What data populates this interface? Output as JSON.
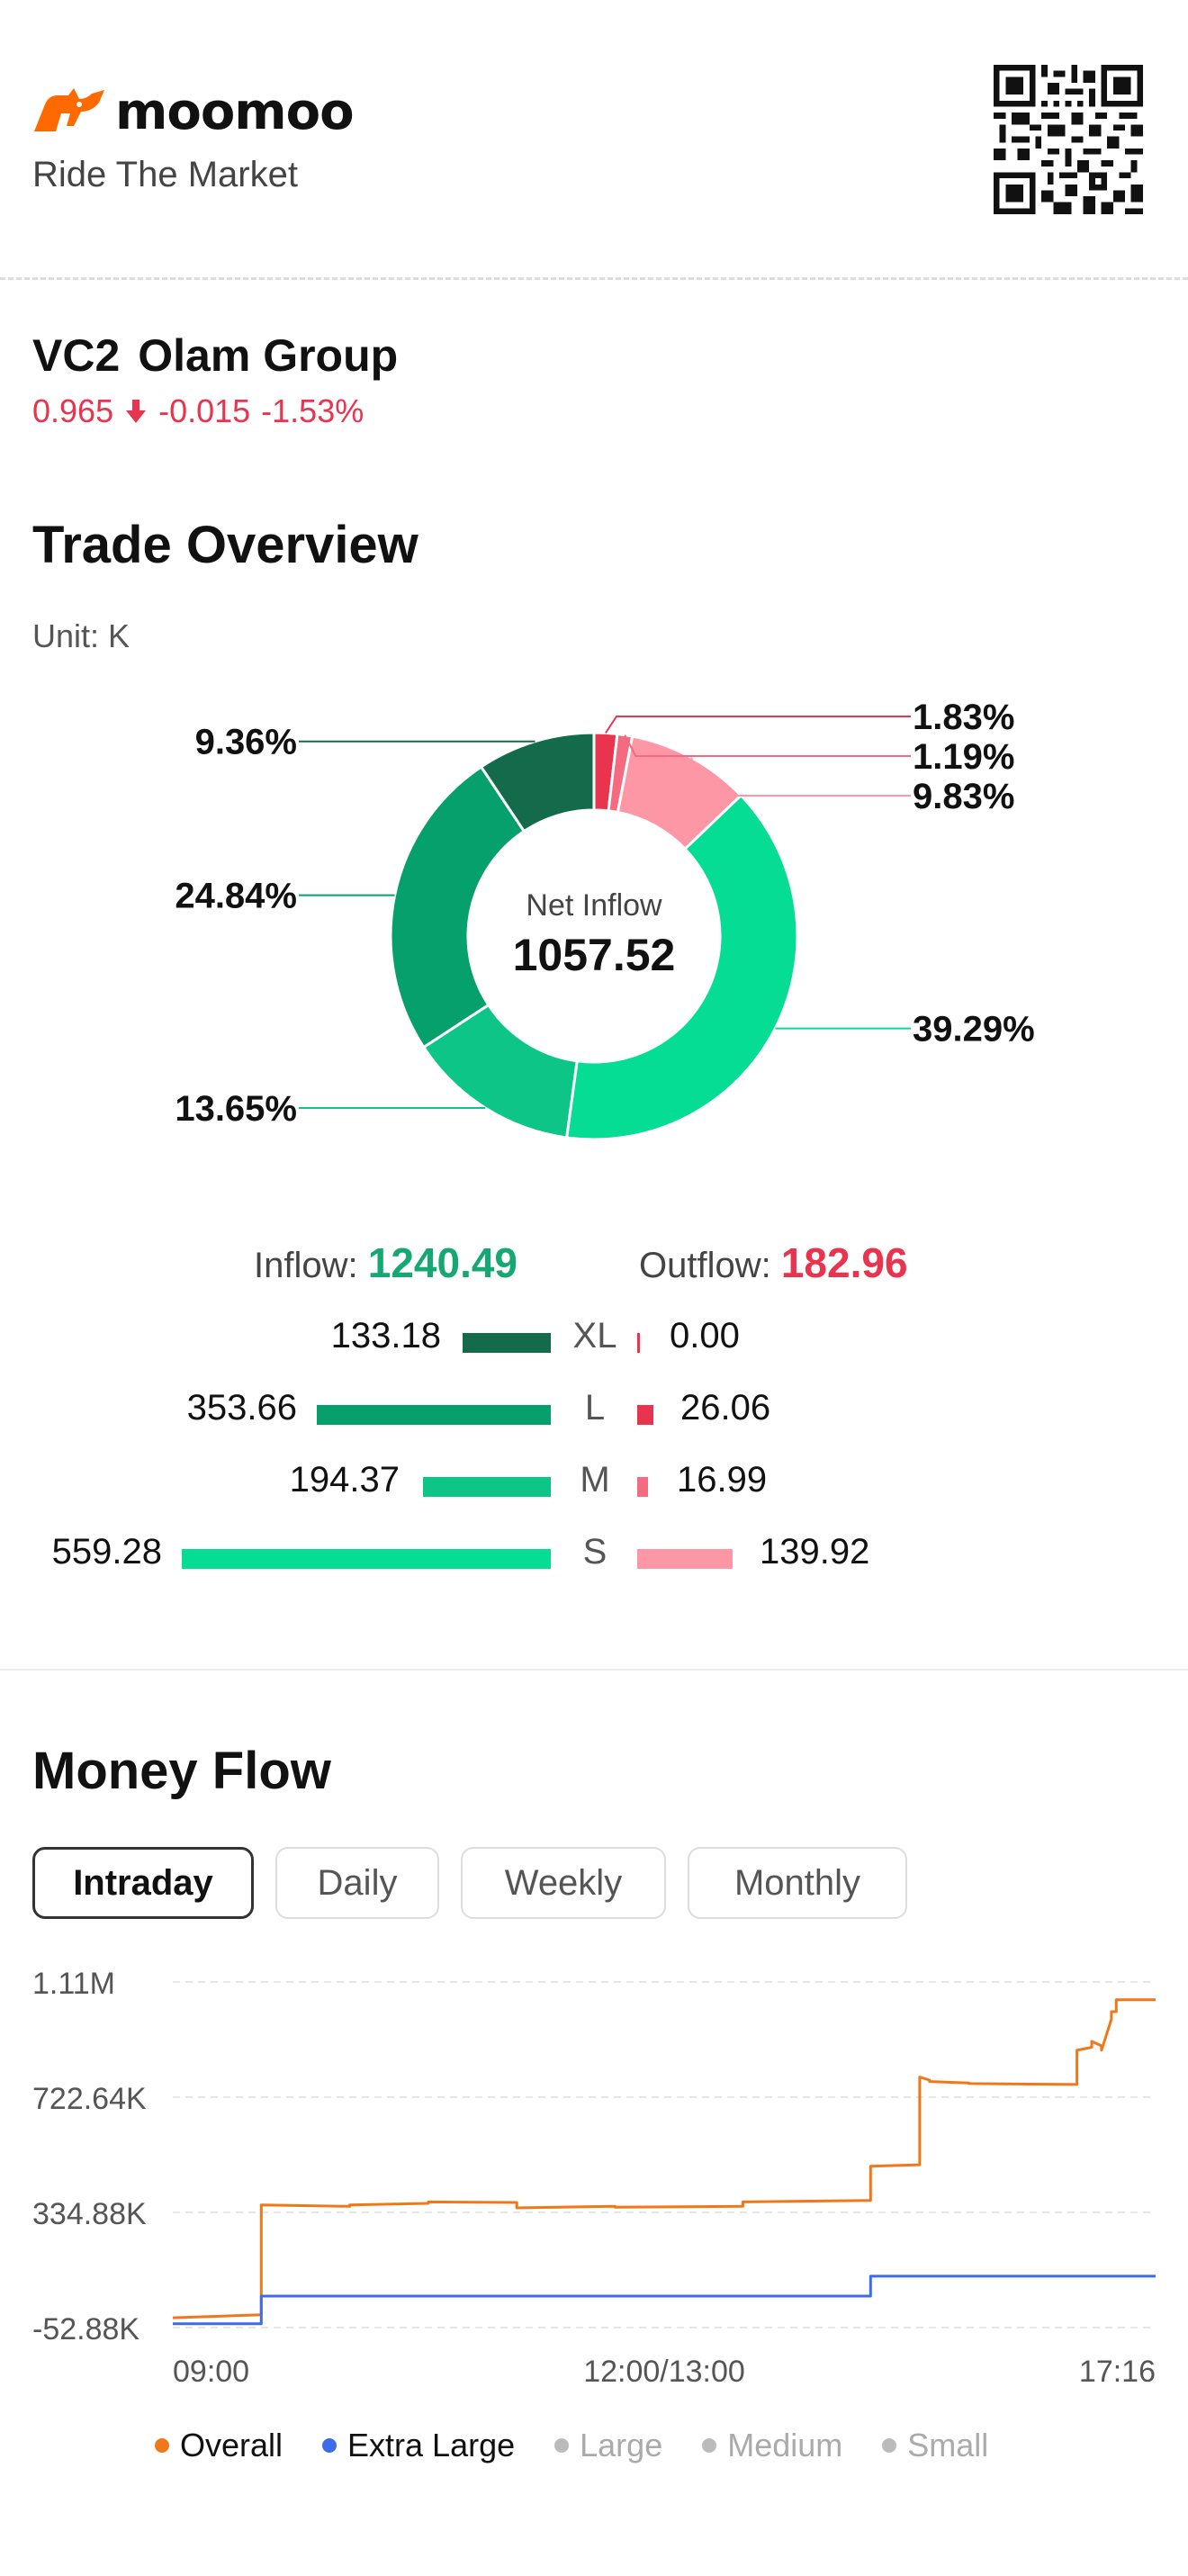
{
  "header": {
    "brand": "moomoo",
    "tagline": "Ride The Market",
    "brand_color": "#ff6a00"
  },
  "stock": {
    "symbol": "VC2",
    "name": "Olam Group",
    "price": "0.965",
    "change": "-0.015",
    "change_pct": "-1.53%",
    "direction": "down",
    "color": "#e8344e"
  },
  "trade_overview": {
    "title": "Trade Overview",
    "unit": "Unit: K",
    "center_label": "Net Inflow",
    "center_value": "1057.52",
    "inflow_label": "Inflow:",
    "inflow_value": "1240.49",
    "outflow_label": "Outflow:",
    "outflow_value": "182.96",
    "rows": [
      {
        "cat": "XL",
        "inflow": "133.18",
        "outflow": "0.00"
      },
      {
        "cat": "L",
        "inflow": "353.66",
        "outflow": "26.06"
      },
      {
        "cat": "M",
        "inflow": "194.37",
        "outflow": "16.99"
      },
      {
        "cat": "S",
        "inflow": "559.28",
        "outflow": "139.92"
      }
    ],
    "colors": {
      "inflow_xl": "#146b4c",
      "inflow_l": "#05a06c",
      "inflow_m": "#0cc587",
      "inflow_s": "#05dc94",
      "outflow_l": "#e8344e",
      "outflow_m": "#f46a80",
      "outflow_s": "#fd96a5"
    }
  },
  "chart_data": [
    {
      "type": "pie",
      "slices": [
        {
          "label": "Outflow L",
          "value": 1.83
        },
        {
          "label": "Outflow M",
          "value": 1.19
        },
        {
          "label": "Outflow S",
          "value": 9.83
        },
        {
          "label": "Inflow S",
          "value": 39.29
        },
        {
          "label": "Inflow M",
          "value": 13.65
        },
        {
          "label": "Inflow L",
          "value": 24.84
        },
        {
          "label": "Inflow XL",
          "value": 9.36
        }
      ],
      "slice_labels": [
        "1.83%",
        "1.19%",
        "9.83%",
        "39.29%",
        "13.65%",
        "24.84%",
        "9.36%"
      ],
      "slice_colors": [
        "#e8344e",
        "#f46a80",
        "#fd96a5",
        "#05dc94",
        "#0cc587",
        "#05a06c",
        "#146b4c"
      ]
    },
    {
      "type": "line",
      "title": "Money Flow",
      "x_ticks": [
        "09:00",
        "12:00/13:00",
        "17:16"
      ],
      "y_ticks": [
        "1.11M",
        "722.64K",
        "334.88K",
        "-52.88K"
      ],
      "ylim": [
        -52880,
        1110000
      ],
      "series": [
        {
          "name": "Overall",
          "color": "#f07818",
          "x": [
            0,
            0.09,
            0.09,
            0.18,
            0.18,
            0.26,
            0.26,
            0.35,
            0.35,
            0.45,
            0.45,
            0.58,
            0.58,
            0.71,
            0.71,
            0.76,
            0.76,
            0.77,
            0.77,
            0.81,
            0.81,
            0.92,
            0.92,
            0.935,
            0.935,
            0.945,
            0.945,
            0.955,
            0.955,
            0.96,
            0.96,
            1.0
          ],
          "y": [
            -20000,
            -10000,
            360000,
            355000,
            360000,
            365000,
            370000,
            368000,
            350000,
            355000,
            352000,
            355000,
            370000,
            375000,
            490000,
            495000,
            790000,
            780000,
            775000,
            770000,
            768000,
            765000,
            880000,
            890000,
            910000,
            895000,
            880000,
            985000,
            1010000,
            1010000,
            1050000,
            1050000
          ]
        },
        {
          "name": "Extra Large",
          "color": "#3d6bea",
          "x": [
            0,
            0.09,
            0.09,
            0.71,
            0.71,
            1.0
          ],
          "y": [
            -40000,
            -40000,
            53000,
            53000,
            120000,
            120000
          ]
        }
      ],
      "legend": [
        {
          "name": "Overall",
          "color": "#f07818"
        },
        {
          "name": "Extra Large",
          "color": "#3d6bea"
        },
        {
          "name": "Large",
          "color": "#bbbbbb"
        },
        {
          "name": "Medium",
          "color": "#bbbbbb"
        },
        {
          "name": "Small",
          "color": "#bbbbbb"
        }
      ]
    }
  ],
  "money_flow": {
    "title": "Money Flow",
    "tabs": [
      "Intraday",
      "Daily",
      "Weekly",
      "Monthly"
    ],
    "active_tab": "Intraday"
  }
}
